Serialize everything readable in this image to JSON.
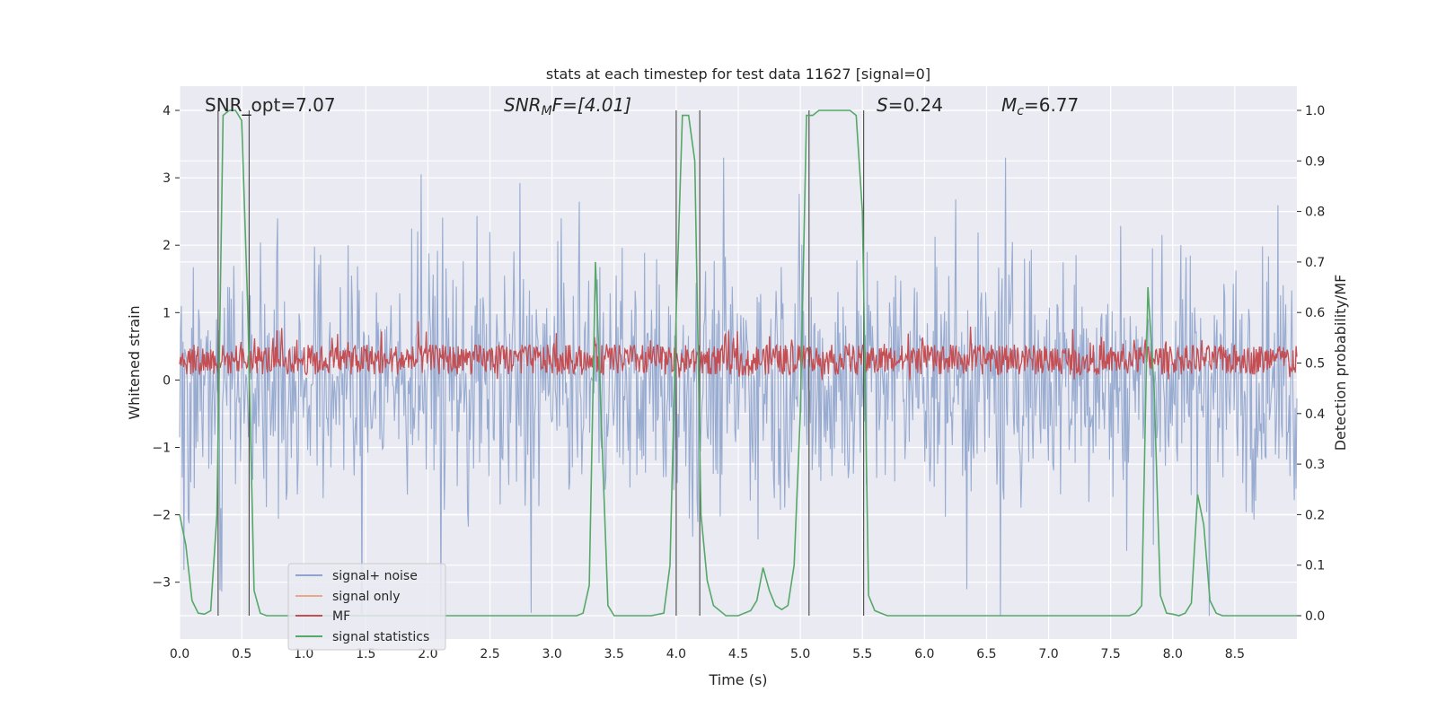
{
  "chart_data": {
    "type": "line",
    "title": "stats at each timestep for test data 11627 [signal=0]",
    "xlabel": "Time (s)",
    "ylabel": "Whitened strain",
    "y2label": "Detection probability/MF",
    "xlim": [
      0,
      9.0
    ],
    "ylim": [
      -3.8,
      4.35
    ],
    "y2lim": [
      -0.05,
      1.05
    ],
    "xticks": [
      "0.0",
      "0.5",
      "1.0",
      "1.5",
      "2.0",
      "2.5",
      "3.0",
      "3.5",
      "4.0",
      "4.5",
      "5.0",
      "5.5",
      "6.0",
      "6.5",
      "7.0",
      "7.5",
      "8.0",
      "8.5"
    ],
    "yticks": [
      "4",
      "3",
      "2",
      "1",
      "0",
      "−1",
      "−2",
      "−3"
    ],
    "y2ticks": [
      "1.0",
      "0.9",
      "0.8",
      "0.7",
      "0.6",
      "0.5",
      "0.4",
      "0.3",
      "0.2",
      "0.1",
      "0.0"
    ],
    "grid": true,
    "legend_position": "lower-left",
    "annotations": {
      "snr_opt": "SNR_opt=7.07",
      "snr_mf_base": "SNR",
      "snr_mf_sub": "M",
      "snr_mf_rest": "F=[4.01]",
      "s_italic": "S",
      "s_rest": "=0.24",
      "mc_base": "M",
      "mc_sub": "c",
      "mc_rest": "=6.77"
    },
    "series": [
      {
        "name": "signal+ noise",
        "color": "#8fa4cc",
        "description_range": [
          -3.5,
          3.3
        ]
      },
      {
        "name": "signal only",
        "color": "#e8a88a",
        "values": []
      },
      {
        "name": "MF",
        "color": "#c44e52",
        "range": [
          0.0,
          0.95
        ]
      },
      {
        "name": "signal statistics",
        "color": "#55a868",
        "x": [
          0.0,
          0.05,
          0.1,
          0.15,
          0.2,
          0.25,
          0.3,
          0.35,
          0.4,
          0.45,
          0.5,
          0.55,
          0.6,
          0.65,
          0.7,
          0.8,
          1.0,
          2.0,
          3.0,
          3.2,
          3.25,
          3.3,
          3.35,
          3.38,
          3.45,
          3.5,
          3.6,
          3.7,
          3.8,
          3.9,
          3.95,
          4.0,
          4.05,
          4.1,
          4.15,
          4.2,
          4.25,
          4.3,
          4.4,
          4.5,
          4.6,
          4.65,
          4.7,
          4.75,
          4.8,
          4.85,
          4.9,
          4.95,
          5.0,
          5.05,
          5.1,
          5.15,
          5.2,
          5.3,
          5.4,
          5.45,
          5.5,
          5.55,
          5.6,
          5.65,
          5.7,
          6.0,
          7.0,
          7.5,
          7.65,
          7.7,
          7.75,
          7.8,
          7.85,
          7.9,
          7.95,
          8.0,
          8.05,
          8.1,
          8.15,
          8.2,
          8.25,
          8.3,
          8.35,
          8.4,
          8.45,
          8.5,
          8.6,
          9.0
        ],
        "y": [
          0.2,
          0.14,
          0.03,
          0.005,
          0.003,
          0.01,
          0.2,
          0.99,
          1.0,
          1.0,
          0.98,
          0.6,
          0.05,
          0.005,
          0.0,
          0.0,
          0.0,
          0.0,
          0.0,
          0.0,
          0.005,
          0.06,
          0.7,
          0.5,
          0.02,
          0.0,
          0.0,
          0.0,
          0.0,
          0.005,
          0.1,
          0.6,
          0.99,
          0.99,
          0.9,
          0.2,
          0.07,
          0.02,
          0.0,
          0.0,
          0.01,
          0.03,
          0.095,
          0.05,
          0.02,
          0.012,
          0.02,
          0.1,
          0.4,
          0.99,
          0.99,
          1.0,
          1.0,
          1.0,
          1.0,
          0.99,
          0.8,
          0.04,
          0.01,
          0.005,
          0.0,
          0.0,
          0.0,
          0.0,
          0.0,
          0.005,
          0.02,
          0.65,
          0.45,
          0.04,
          0.005,
          0.003,
          0.0,
          0.005,
          0.025,
          0.24,
          0.18,
          0.03,
          0.005,
          0.0,
          0.0,
          0.0,
          0.0,
          0.0
        ]
      }
    ],
    "vlines_x": [
      0.31,
      0.56,
      4.0,
      4.19,
      5.07,
      5.51
    ]
  }
}
